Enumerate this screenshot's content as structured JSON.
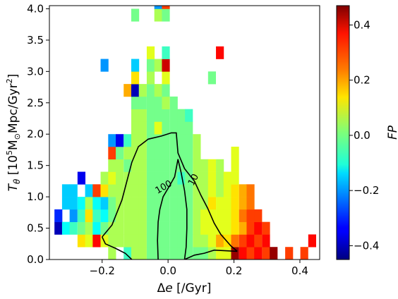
{
  "chart_data": {
    "type": "heatmap",
    "xlabel": "Δe [/Gyr]",
    "xlabel_parts": {
      "prefix": "Δ",
      "var": "e",
      "rest": " [/Gyr]"
    },
    "ylabel": "Tθ [10⁵M⊙Mpc/Gyr²]",
    "ylabel_parts": {
      "var": "T",
      "sub": "θ",
      "text": " [10",
      "sup": "5",
      "msun": "M",
      "sunsub": "⊙",
      "unit": "Mpc/Gyr",
      "sup2": "2",
      "close": "]"
    },
    "xlim": [
      -0.36,
      0.46
    ],
    "ylim": [
      0.0,
      4.05
    ],
    "x_ticks": [
      {
        "v": -0.2,
        "label": "−0.2"
      },
      {
        "v": 0.0,
        "label": "0.0"
      },
      {
        "v": 0.2,
        "label": "0.2"
      },
      {
        "v": 0.4,
        "label": "0.4"
      }
    ],
    "y_ticks": [
      {
        "v": 0.0,
        "label": "0.0"
      },
      {
        "v": 0.5,
        "label": "0.5"
      },
      {
        "v": 1.0,
        "label": "1.0"
      },
      {
        "v": 1.5,
        "label": "1.5"
      },
      {
        "v": 2.0,
        "label": "2.0"
      },
      {
        "v": 2.5,
        "label": "2.5"
      },
      {
        "v": 3.0,
        "label": "3.0"
      },
      {
        "v": 3.5,
        "label": "3.5"
      },
      {
        "v": 4.0,
        "label": "4.0"
      }
    ],
    "bin_width_x": 0.0233,
    "bin_width_y": 0.2,
    "cells": [
      [
        -0.17,
        0.1,
        0.05
      ],
      [
        -0.123,
        0.1,
        -0.05
      ],
      [
        -0.1,
        0.1,
        0.05
      ],
      [
        -0.077,
        0.1,
        0.05
      ],
      [
        -0.053,
        0.1,
        0.0
      ],
      [
        -0.03,
        0.1,
        0.0
      ],
      [
        -0.007,
        0.1,
        0.0
      ],
      [
        0.017,
        0.1,
        0.0
      ],
      [
        0.04,
        0.1,
        0.0
      ],
      [
        0.063,
        0.1,
        0.0
      ],
      [
        0.087,
        0.1,
        0.0
      ],
      [
        0.11,
        0.1,
        0.0
      ],
      [
        0.133,
        0.1,
        0.05
      ],
      [
        0.157,
        0.1,
        0.1
      ],
      [
        0.18,
        0.1,
        0.1
      ],
      [
        0.203,
        0.1,
        0.45
      ],
      [
        0.227,
        0.1,
        0.35
      ],
      [
        0.25,
        0.1,
        0.3
      ],
      [
        0.273,
        0.1,
        0.35
      ],
      [
        0.297,
        0.1,
        0.3
      ],
      [
        0.32,
        0.1,
        0.45
      ],
      [
        0.367,
        0.1,
        0.3
      ],
      [
        0.413,
        0.1,
        0.3
      ],
      [
        -0.263,
        0.3,
        0.15
      ],
      [
        -0.24,
        0.3,
        0.1
      ],
      [
        -0.217,
        0.3,
        0.35
      ],
      [
        -0.193,
        0.3,
        0.1
      ],
      [
        -0.17,
        0.3,
        0.05
      ],
      [
        -0.147,
        0.3,
        0.05
      ],
      [
        -0.123,
        0.3,
        0.05
      ],
      [
        -0.1,
        0.3,
        0.05
      ],
      [
        -0.077,
        0.3,
        0.05
      ],
      [
        -0.053,
        0.3,
        0.0
      ],
      [
        -0.03,
        0.3,
        0.0
      ],
      [
        -0.007,
        0.3,
        0.0
      ],
      [
        0.017,
        0.3,
        0.0
      ],
      [
        0.04,
        0.3,
        0.0
      ],
      [
        0.063,
        0.3,
        0.0
      ],
      [
        0.087,
        0.3,
        0.05
      ],
      [
        0.11,
        0.3,
        0.05
      ],
      [
        0.133,
        0.3,
        0.1
      ],
      [
        0.157,
        0.3,
        0.2
      ],
      [
        0.18,
        0.3,
        0.15
      ],
      [
        0.203,
        0.3,
        0.25
      ],
      [
        0.227,
        0.3,
        0.3
      ],
      [
        0.25,
        0.3,
        0.35
      ],
      [
        0.273,
        0.3,
        0.3
      ],
      [
        0.297,
        0.3,
        0.35
      ],
      [
        0.437,
        0.3,
        0.35
      ],
      [
        -0.333,
        0.5,
        -0.4
      ],
      [
        -0.31,
        0.5,
        -0.1
      ],
      [
        -0.287,
        0.5,
        -0.05
      ],
      [
        -0.263,
        0.5,
        0.0
      ],
      [
        -0.24,
        0.5,
        0.05
      ],
      [
        -0.217,
        0.5,
        -0.1
      ],
      [
        -0.193,
        0.5,
        0.0
      ],
      [
        -0.17,
        0.5,
        0.05
      ],
      [
        -0.147,
        0.5,
        0.05
      ],
      [
        -0.123,
        0.5,
        0.05
      ],
      [
        -0.1,
        0.5,
        0.05
      ],
      [
        -0.077,
        0.5,
        0.05
      ],
      [
        -0.053,
        0.5,
        0.0
      ],
      [
        -0.03,
        0.5,
        0.0
      ],
      [
        -0.007,
        0.5,
        0.0
      ],
      [
        0.017,
        0.5,
        0.0
      ],
      [
        0.04,
        0.5,
        0.0
      ],
      [
        0.063,
        0.5,
        0.0
      ],
      [
        0.087,
        0.5,
        0.05
      ],
      [
        0.11,
        0.5,
        0.1
      ],
      [
        0.133,
        0.5,
        0.1
      ],
      [
        0.157,
        0.5,
        0.1
      ],
      [
        0.18,
        0.5,
        0.1
      ],
      [
        0.203,
        0.5,
        0.15
      ],
      [
        0.227,
        0.5,
        0.2
      ],
      [
        0.25,
        0.5,
        0.3
      ],
      [
        0.273,
        0.5,
        0.35
      ],
      [
        0.297,
        0.5,
        0.3
      ],
      [
        -0.333,
        0.7,
        -0.3
      ],
      [
        -0.287,
        0.7,
        -0.2
      ],
      [
        -0.263,
        0.7,
        -0.05
      ],
      [
        -0.24,
        0.7,
        0.15
      ],
      [
        -0.217,
        0.7,
        -0.05
      ],
      [
        -0.193,
        0.7,
        -0.1
      ],
      [
        -0.17,
        0.7,
        0.0
      ],
      [
        -0.147,
        0.7,
        0.05
      ],
      [
        -0.123,
        0.7,
        0.05
      ],
      [
        -0.1,
        0.7,
        0.05
      ],
      [
        -0.077,
        0.7,
        0.05
      ],
      [
        -0.053,
        0.7,
        0.0
      ],
      [
        -0.03,
        0.7,
        0.0
      ],
      [
        -0.007,
        0.7,
        0.0
      ],
      [
        0.017,
        0.7,
        0.0
      ],
      [
        0.04,
        0.7,
        0.0
      ],
      [
        0.063,
        0.7,
        0.0
      ],
      [
        0.087,
        0.7,
        0.05
      ],
      [
        0.11,
        0.7,
        0.1
      ],
      [
        0.133,
        0.7,
        0.1
      ],
      [
        0.157,
        0.7,
        0.1
      ],
      [
        0.18,
        0.7,
        0.1
      ],
      [
        0.203,
        0.7,
        0.15
      ],
      [
        0.227,
        0.7,
        0.25
      ],
      [
        0.25,
        0.7,
        0.3
      ],
      [
        0.273,
        0.7,
        0.3
      ],
      [
        -0.31,
        0.9,
        -0.15
      ],
      [
        -0.287,
        0.9,
        -0.15
      ],
      [
        -0.263,
        0.9,
        -0.1
      ],
      [
        -0.24,
        0.9,
        0.05
      ],
      [
        -0.217,
        0.9,
        -0.1
      ],
      [
        -0.193,
        0.9,
        -0.15
      ],
      [
        -0.17,
        0.9,
        0.0
      ],
      [
        -0.147,
        0.9,
        0.05
      ],
      [
        -0.123,
        0.9,
        0.05
      ],
      [
        -0.1,
        0.9,
        0.05
      ],
      [
        -0.077,
        0.9,
        0.05
      ],
      [
        -0.053,
        0.9,
        0.0
      ],
      [
        -0.03,
        0.9,
        0.0
      ],
      [
        -0.007,
        0.9,
        0.0
      ],
      [
        0.017,
        0.9,
        0.0
      ],
      [
        0.04,
        0.9,
        0.0
      ],
      [
        0.063,
        0.9,
        0.0
      ],
      [
        0.087,
        0.9,
        0.05
      ],
      [
        0.11,
        0.9,
        0.05
      ],
      [
        0.133,
        0.9,
        0.15
      ],
      [
        0.157,
        0.9,
        0.1
      ],
      [
        0.18,
        0.9,
        0.1
      ],
      [
        0.203,
        0.9,
        0.15
      ],
      [
        0.227,
        0.9,
        0.2
      ],
      [
        0.25,
        0.9,
        0.25
      ],
      [
        -0.31,
        1.1,
        -0.15
      ],
      [
        -0.287,
        1.1,
        -0.15
      ],
      [
        -0.24,
        1.1,
        -0.15
      ],
      [
        -0.217,
        1.1,
        0.3
      ],
      [
        -0.193,
        1.1,
        0.15
      ],
      [
        -0.17,
        1.1,
        0.05
      ],
      [
        -0.147,
        1.1,
        0.05
      ],
      [
        -0.123,
        1.1,
        0.05
      ],
      [
        -0.1,
        1.1,
        0.05
      ],
      [
        -0.077,
        1.1,
        0.05
      ],
      [
        -0.053,
        1.1,
        0.0
      ],
      [
        -0.03,
        1.1,
        0.0
      ],
      [
        -0.007,
        1.1,
        0.0
      ],
      [
        0.017,
        1.1,
        0.0
      ],
      [
        0.04,
        1.1,
        0.0
      ],
      [
        0.063,
        1.1,
        0.0
      ],
      [
        0.087,
        1.1,
        0.05
      ],
      [
        0.11,
        1.1,
        0.05
      ],
      [
        0.133,
        1.1,
        0.1
      ],
      [
        0.157,
        1.1,
        0.05
      ],
      [
        0.18,
        1.1,
        0.1
      ],
      [
        0.203,
        1.1,
        0.15
      ],
      [
        0.227,
        1.1,
        0.2
      ],
      [
        0.25,
        1.1,
        0.25
      ],
      [
        -0.263,
        1.3,
        -0.35
      ],
      [
        -0.193,
        1.3,
        0.05
      ],
      [
        -0.17,
        1.3,
        0.1
      ],
      [
        -0.147,
        1.3,
        0.05
      ],
      [
        -0.123,
        1.3,
        0.05
      ],
      [
        -0.1,
        1.3,
        0.05
      ],
      [
        -0.077,
        1.3,
        0.05
      ],
      [
        -0.053,
        1.3,
        0.0
      ],
      [
        -0.03,
        1.3,
        0.0
      ],
      [
        -0.007,
        1.3,
        0.0
      ],
      [
        0.017,
        1.3,
        0.0
      ],
      [
        0.04,
        1.3,
        -0.05
      ],
      [
        0.063,
        1.3,
        0.0
      ],
      [
        0.087,
        1.3,
        0.05
      ],
      [
        0.11,
        1.3,
        0.05
      ],
      [
        0.133,
        1.3,
        0.1
      ],
      [
        0.157,
        1.3,
        0.05
      ],
      [
        0.18,
        1.3,
        0.1
      ],
      [
        0.203,
        1.3,
        0.1
      ],
      [
        -0.17,
        1.5,
        0.05
      ],
      [
        -0.147,
        1.5,
        0.05
      ],
      [
        -0.123,
        1.5,
        0.0
      ],
      [
        -0.1,
        1.5,
        0.05
      ],
      [
        -0.077,
        1.5,
        0.05
      ],
      [
        -0.053,
        1.5,
        0.0
      ],
      [
        -0.03,
        1.5,
        0.0
      ],
      [
        -0.007,
        1.5,
        0.0
      ],
      [
        0.017,
        1.5,
        0.0
      ],
      [
        0.04,
        1.5,
        0.0
      ],
      [
        0.063,
        1.5,
        0.0
      ],
      [
        0.087,
        1.5,
        0.05
      ],
      [
        0.11,
        1.5,
        0.05
      ],
      [
        0.133,
        1.5,
        0.1
      ],
      [
        0.157,
        1.5,
        0.05
      ],
      [
        0.203,
        1.5,
        0.1
      ],
      [
        -0.17,
        1.7,
        0.3
      ],
      [
        -0.147,
        1.7,
        0.0
      ],
      [
        -0.123,
        1.7,
        0.05
      ],
      [
        -0.1,
        1.7,
        0.05
      ],
      [
        -0.077,
        1.7,
        0.05
      ],
      [
        -0.053,
        1.7,
        0.0
      ],
      [
        -0.03,
        1.7,
        0.0
      ],
      [
        -0.007,
        1.7,
        0.0
      ],
      [
        0.017,
        1.7,
        0.0
      ],
      [
        0.04,
        1.7,
        0.0
      ],
      [
        0.063,
        1.7,
        0.0
      ],
      [
        0.087,
        1.7,
        0.05
      ],
      [
        0.203,
        1.7,
        0.1
      ],
      [
        -0.17,
        1.9,
        -0.2
      ],
      [
        -0.147,
        1.9,
        -0.35
      ],
      [
        -0.123,
        1.9,
        -0.05
      ],
      [
        -0.1,
        1.9,
        0.05
      ],
      [
        -0.077,
        1.9,
        0.05
      ],
      [
        -0.053,
        1.9,
        0.0
      ],
      [
        -0.03,
        1.9,
        0.0
      ],
      [
        -0.007,
        1.9,
        0.0
      ],
      [
        0.017,
        1.9,
        0.0
      ],
      [
        0.04,
        1.9,
        0.0
      ],
      [
        0.063,
        1.9,
        0.0
      ],
      [
        0.087,
        1.9,
        0.05
      ],
      [
        -0.1,
        2.1,
        0.05
      ],
      [
        -0.077,
        2.1,
        0.05
      ],
      [
        -0.053,
        2.1,
        0.0
      ],
      [
        -0.03,
        2.1,
        0.1
      ],
      [
        -0.007,
        2.1,
        0.0
      ],
      [
        0.017,
        2.1,
        0.0
      ],
      [
        0.04,
        2.1,
        0.0
      ],
      [
        0.063,
        2.1,
        0.0
      ],
      [
        -0.1,
        2.3,
        0.05
      ],
      [
        -0.077,
        2.3,
        0.05
      ],
      [
        -0.053,
        2.3,
        0.0
      ],
      [
        -0.03,
        2.3,
        0.0
      ],
      [
        -0.007,
        2.3,
        0.0
      ],
      [
        0.017,
        2.3,
        0.0
      ],
      [
        0.04,
        2.3,
        0.0
      ],
      [
        0.063,
        2.3,
        -0.05
      ],
      [
        -0.1,
        2.5,
        0.0
      ],
      [
        -0.077,
        2.5,
        0.0
      ],
      [
        -0.053,
        2.5,
        0.0
      ],
      [
        -0.03,
        2.5,
        0.0
      ],
      [
        -0.007,
        2.5,
        0.05
      ],
      [
        0.017,
        2.5,
        0.0
      ],
      [
        -0.123,
        2.7,
        0.2
      ],
      [
        -0.1,
        2.7,
        -0.4
      ],
      [
        -0.077,
        2.7,
        0.05
      ],
      [
        -0.053,
        2.7,
        0.0
      ],
      [
        -0.03,
        2.7,
        0.05
      ],
      [
        -0.007,
        2.7,
        0.0
      ],
      [
        -0.1,
        2.9,
        0.15
      ],
      [
        -0.053,
        2.9,
        0.05
      ],
      [
        -0.007,
        2.9,
        0.1
      ],
      [
        0.133,
        2.9,
        0.0
      ],
      [
        -0.193,
        3.1,
        -0.2
      ],
      [
        -0.1,
        3.1,
        -0.15
      ],
      [
        -0.053,
        3.1,
        0.0
      ],
      [
        -0.03,
        3.1,
        0.05
      ],
      [
        -0.007,
        3.1,
        0.4
      ],
      [
        -0.053,
        3.3,
        0.1
      ],
      [
        -0.007,
        3.3,
        -0.05
      ],
      [
        0.157,
        3.3,
        0.35
      ],
      [
        -0.1,
        3.9,
        0.0
      ],
      [
        -0.03,
        3.9,
        0.05
      ],
      [
        -0.007,
        3.9,
        0.0
      ],
      [
        -0.03,
        4.1,
        -0.2
      ],
      [
        -0.007,
        4.1,
        0.3
      ]
    ],
    "contours": [
      {
        "label": "10",
        "points": [
          [
            -0.2,
            0.36
          ],
          [
            -0.17,
            0.55
          ],
          [
            -0.14,
            0.95
          ],
          [
            -0.11,
            1.55
          ],
          [
            -0.09,
            1.8
          ],
          [
            -0.06,
            1.92
          ],
          [
            -0.02,
            1.97
          ],
          [
            0.01,
            2.02
          ],
          [
            0.025,
            2.02
          ],
          [
            0.03,
            1.7
          ],
          [
            0.05,
            1.45
          ],
          [
            0.08,
            1.25
          ],
          [
            0.1,
            1.02
          ],
          [
            0.12,
            0.82
          ],
          [
            0.14,
            0.58
          ],
          [
            0.16,
            0.4
          ],
          [
            0.19,
            0.22
          ],
          [
            0.21,
            0.13
          ]
        ]
      },
      {
        "label": "",
        "points": [
          [
            -0.2,
            0.36
          ],
          [
            -0.19,
            0.25
          ],
          [
            -0.16,
            0.18
          ],
          [
            -0.13,
            0.1
          ],
          [
            -0.11,
            0.0
          ]
        ]
      },
      {
        "label": "",
        "points": [
          [
            0.05,
            0.0
          ],
          [
            0.08,
            0.07
          ],
          [
            0.11,
            0.1
          ],
          [
            0.14,
            0.15
          ],
          [
            0.21,
            0.13
          ]
        ]
      },
      {
        "label": "100",
        "points": [
          [
            -0.03,
            0.0
          ],
          [
            -0.032,
            0.3
          ],
          [
            -0.03,
            0.6
          ],
          [
            -0.025,
            0.8
          ],
          [
            -0.015,
            1.0
          ],
          [
            0.005,
            1.18
          ],
          [
            0.02,
            1.32
          ],
          [
            0.03,
            1.6
          ],
          [
            0.04,
            1.38
          ],
          [
            0.05,
            1.1
          ],
          [
            0.057,
            0.8
          ],
          [
            0.057,
            0.5
          ],
          [
            0.055,
            0.2
          ],
          [
            0.05,
            0.0
          ]
        ]
      }
    ],
    "contour_label_positions": [
      {
        "text": "10",
        "x": 0.078,
        "y": 1.27,
        "angle": -62
      },
      {
        "text": "100",
        "x": -0.013,
        "y": 1.15,
        "angle": -30
      }
    ],
    "colorbar": {
      "label": "FP",
      "range": [
        -0.45,
        0.47
      ],
      "ticks": [
        {
          "v": 0.4,
          "label": "0.4"
        },
        {
          "v": 0.2,
          "label": "0.2"
        },
        {
          "v": 0.0,
          "label": "0.0"
        },
        {
          "v": -0.2,
          "label": "−0.2"
        },
        {
          "v": -0.4,
          "label": "−0.4"
        }
      ]
    },
    "colormap": "jet",
    "grid": false,
    "legend": "none"
  }
}
